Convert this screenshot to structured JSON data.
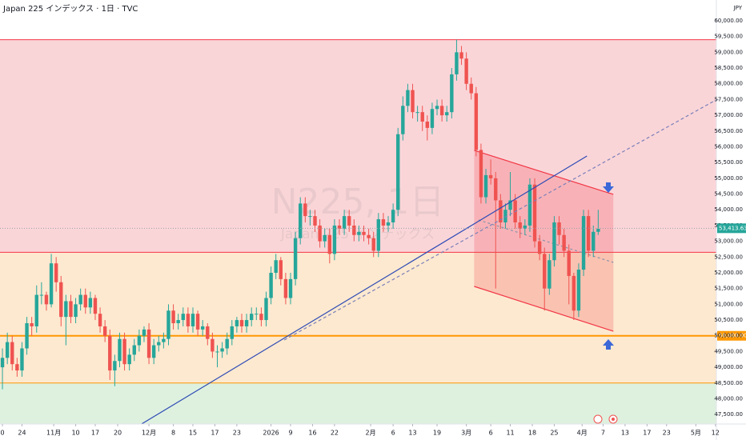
{
  "chart_data": {
    "type": "candlestick",
    "title": "Japan 225 インデックス · 1日 · TVC",
    "currency": "JPY",
    "watermark": [
      "N225, 1日",
      "Japan 225 インデックス"
    ],
    "up_color": "#26a69a",
    "down_color": "#ef5350",
    "xlim": [
      -0.5,
      146.2
    ],
    "ylim": [
      47200,
      60660
    ],
    "yticks": [
      {
        "value": 47500,
        "label": "47,500.00"
      },
      {
        "value": 48000,
        "label": "48,000.00"
      },
      {
        "value": 48500,
        "label": "48,500.00"
      },
      {
        "value": 49000,
        "label": "49,000.00"
      },
      {
        "value": 49500,
        "label": "49,500.00"
      },
      {
        "value": 50000,
        "label": "50,000.00"
      },
      {
        "value": 50500,
        "label": "50,500.00"
      },
      {
        "value": 51000,
        "label": "51,000.00"
      },
      {
        "value": 51500,
        "label": "51,500.00"
      },
      {
        "value": 52000,
        "label": "52,000.00"
      },
      {
        "value": 52500,
        "label": "52,500.00"
      },
      {
        "value": 53000,
        "label": "53,000.00"
      },
      {
        "value": 53500,
        "label": "53,500.00"
      },
      {
        "value": 54000,
        "label": "54,000.00"
      },
      {
        "value": 54500,
        "label": "54,500.00"
      },
      {
        "value": 55000,
        "label": "55,000.00"
      },
      {
        "value": 55500,
        "label": "55,500.00"
      },
      {
        "value": 56000,
        "label": "56,000.00"
      },
      {
        "value": 56500,
        "label": "56,500.00"
      },
      {
        "value": 57000,
        "label": "57,000.00"
      },
      {
        "value": 57500,
        "label": "57,500.00"
      },
      {
        "value": 58000,
        "label": "58,000.00"
      },
      {
        "value": 58500,
        "label": "58,500.00"
      },
      {
        "value": 59000,
        "label": "59,000.00"
      },
      {
        "value": 59500,
        "label": "59,500.00"
      },
      {
        "value": 60000,
        "label": "60,000.00"
      }
    ],
    "xticks": [
      {
        "value": 0,
        "label": "0"
      },
      {
        "value": 4,
        "label": "24"
      },
      {
        "value": 10.5,
        "label": "11月"
      },
      {
        "value": 15,
        "label": "10"
      },
      {
        "value": 19,
        "label": "17"
      },
      {
        "value": 23.6,
        "label": "20"
      },
      {
        "value": 30,
        "label": "12月"
      },
      {
        "value": 35,
        "label": "8"
      },
      {
        "value": 39,
        "label": "15"
      },
      {
        "value": 43.5,
        "label": "17"
      },
      {
        "value": 48,
        "label": "23"
      },
      {
        "value": 55,
        "label": "2026"
      },
      {
        "value": 59,
        "label": "9"
      },
      {
        "value": 63.5,
        "label": "16"
      },
      {
        "value": 68,
        "label": "22"
      },
      {
        "value": 75.4,
        "label": "2月"
      },
      {
        "value": 80,
        "label": "6"
      },
      {
        "value": 84,
        "label": "13"
      },
      {
        "value": 89,
        "label": "19"
      },
      {
        "value": 95,
        "label": "3月"
      },
      {
        "value": 100,
        "label": "6"
      },
      {
        "value": 104,
        "label": "11"
      },
      {
        "value": 108.5,
        "label": "18"
      },
      {
        "value": 113,
        "label": "25"
      },
      {
        "value": 118.7,
        "label": "4月"
      },
      {
        "value": 123,
        "label": "7"
      },
      {
        "value": 127.5,
        "label": "13"
      },
      {
        "value": 132,
        "label": "17"
      },
      {
        "value": 136,
        "label": "23"
      },
      {
        "value": 142,
        "label": "5月"
      },
      {
        "value": 146,
        "label": "12"
      }
    ],
    "open": [
      49000,
      49300,
      49800,
      49100,
      48900,
      49600,
      50400,
      50300,
      51300,
      51300,
      51000,
      52300,
      51700,
      50600,
      51100,
      50600,
      51000,
      51300,
      50900,
      51200,
      50700,
      50300,
      50000,
      48900,
      49200,
      49900,
      49100,
      49400,
      49700,
      50000,
      50200,
      49300,
      49700,
      49800,
      49900,
      50800,
      50400,
      50500,
      50700,
      50300,
      50700,
      50200,
      50300,
      49900,
      49500,
      49500,
      49600,
      49900,
      50300,
      50500,
      50300,
      50500,
      50700,
      50700,
      50500,
      51200,
      52000,
      52400,
      51800,
      51200,
      51800,
      53100,
      54200,
      53800,
      53800,
      53500,
      53000,
      53200,
      52600,
      53500,
      53400,
      53800,
      53500,
      53200,
      53300,
      53200,
      53100,
      52700,
      53700,
      53500,
      53600,
      54000,
      56400,
      57300,
      57800,
      57100,
      57100,
      56800,
      56600,
      57200,
      57300,
      57000,
      57100,
      58300,
      59000,
      58800,
      58000,
      57700,
      55900,
      54400,
      55100,
      55000,
      54300,
      53600,
      54000,
      54300,
      53600,
      53400,
      53500,
      54800,
      53000,
      52600,
      51500,
      52400,
      53600,
      53200,
      52700,
      51900,
      50800,
      52100,
      53800,
      52700,
      53300
    ],
    "high": [
      49600,
      50100,
      50000,
      49300,
      49800,
      50600,
      50600,
      51600,
      51700,
      51400,
      52600,
      52500,
      51900,
      51300,
      51300,
      51200,
      51500,
      51500,
      51400,
      51300,
      50900,
      50500,
      50200,
      49400,
      50100,
      50100,
      49600,
      49900,
      50200,
      50300,
      50400,
      49900,
      50000,
      50100,
      51000,
      51000,
      50700,
      50900,
      50900,
      50900,
      50800,
      50500,
      50400,
      50100,
      49700,
      49800,
      50100,
      50500,
      50600,
      50700,
      50700,
      50900,
      50900,
      50900,
      51400,
      52200,
      52600,
      52500,
      52000,
      52000,
      53300,
      54400,
      54400,
      54000,
      54000,
      53700,
      53400,
      53400,
      53700,
      53700,
      54000,
      54000,
      53700,
      53500,
      53500,
      53400,
      53300,
      53900,
      53900,
      53800,
      54200,
      56600,
      57600,
      58000,
      58000,
      57300,
      57300,
      57000,
      57400,
      57500,
      57500,
      57300,
      58500,
      59400,
      59200,
      59000,
      58200,
      57900,
      56100,
      55300,
      55600,
      55200,
      54500,
      54200,
      55200,
      54500,
      53800,
      53700,
      55000,
      55000,
      53200,
      52800,
      52600,
      53800,
      53800,
      53400,
      52900,
      52000,
      52300,
      54000,
      54000,
      53500,
      54000
    ],
    "low": [
      48300,
      49100,
      48900,
      48700,
      48700,
      49400,
      50000,
      50100,
      51000,
      50800,
      50900,
      51400,
      50300,
      49700,
      50400,
      50400,
      50800,
      50700,
      50700,
      50500,
      50100,
      49800,
      48600,
      48400,
      49000,
      48900,
      48900,
      49200,
      49500,
      49800,
      49100,
      49100,
      49500,
      49600,
      49700,
      50200,
      50200,
      50300,
      50100,
      50100,
      50000,
      50000,
      49700,
      49300,
      49000,
      49300,
      49400,
      49700,
      50100,
      50100,
      50100,
      50300,
      50500,
      50300,
      50300,
      51000,
      51800,
      51600,
      51000,
      51000,
      51600,
      52900,
      53600,
      53500,
      53300,
      52800,
      52800,
      52300,
      52400,
      53200,
      53200,
      53300,
      53000,
      53000,
      53000,
      52900,
      52500,
      52500,
      53300,
      53300,
      53400,
      53800,
      56200,
      57100,
      56900,
      56800,
      56500,
      56200,
      56400,
      57000,
      56800,
      56800,
      56900,
      58100,
      58600,
      57800,
      57500,
      55700,
      54200,
      54200,
      54800,
      51500,
      53400,
      53400,
      53800,
      53400,
      53100,
      53200,
      53300,
      52800,
      52400,
      50800,
      51300,
      52200,
      52900,
      52500,
      51000,
      50500,
      50600,
      51900,
      52500,
      52500,
      53200
    ],
    "close": [
      49300,
      49800,
      49100,
      48900,
      49600,
      50400,
      50300,
      51300,
      51300,
      51000,
      52300,
      51700,
      50600,
      51100,
      50600,
      51000,
      51300,
      50900,
      51200,
      50700,
      50300,
      50000,
      48900,
      49200,
      49900,
      49100,
      49400,
      49700,
      50000,
      50200,
      49300,
      49700,
      49800,
      49900,
      50800,
      50400,
      50500,
      50700,
      50300,
      50700,
      50200,
      50300,
      49900,
      49500,
      49500,
      49600,
      49900,
      50300,
      50500,
      50300,
      50500,
      50700,
      50700,
      50500,
      51200,
      52000,
      52400,
      51800,
      51200,
      51800,
      53100,
      54200,
      53800,
      53800,
      53500,
      53000,
      53200,
      52600,
      53500,
      53400,
      53800,
      53500,
      53200,
      53300,
      53200,
      53100,
      52700,
      53700,
      53500,
      53600,
      54000,
      56400,
      57300,
      57800,
      57100,
      57100,
      56800,
      56600,
      57200,
      57300,
      57000,
      57100,
      58300,
      59000,
      58800,
      58000,
      57700,
      55900,
      54400,
      55100,
      55000,
      54300,
      53600,
      54000,
      54300,
      53600,
      53400,
      53500,
      54800,
      53000,
      52600,
      51500,
      52400,
      53600,
      53200,
      52700,
      51900,
      50800,
      52100,
      53800,
      52700,
      53300,
      53400
    ],
    "last_price": {
      "value": 53413.63,
      "label": "53,413.63"
    },
    "levels": [
      {
        "value": 59400,
        "color": "#f23645",
        "fill_below": "#fad5d8"
      },
      {
        "value": 52650,
        "color": "#f23645",
        "fill_below": "#fde9d0"
      },
      {
        "value": 50000,
        "color": "#ff9800",
        "label": "50,000.00"
      },
      {
        "value": 48500,
        "color": "#ff9800",
        "fill_below": "#def1df"
      }
    ],
    "trendlines": [
      {
        "color": "#2e4bb5",
        "x": [
          27.4,
          119.7
        ],
        "y": [
          47099,
          55708
        ]
      },
      {
        "color": "#7b80b8",
        "dashed": true,
        "x": [
          57.7,
          152.3
        ],
        "y": [
          49867,
          58019
        ]
      }
    ],
    "channel": {
      "color": "#f23645",
      "fill": "rgba(242,54,69,0.22)",
      "upper": {
        "x": [
          96.6,
          125.1
        ],
        "y": [
          55886,
          54489
        ]
      },
      "lower": {
        "x": [
          96.6,
          125.1
        ],
        "y": [
          51568,
          50146
        ]
      },
      "middle": {
        "x": [
          97.5,
          125.1
        ],
        "y": [
          53676,
          52330
        ]
      }
    }
  }
}
